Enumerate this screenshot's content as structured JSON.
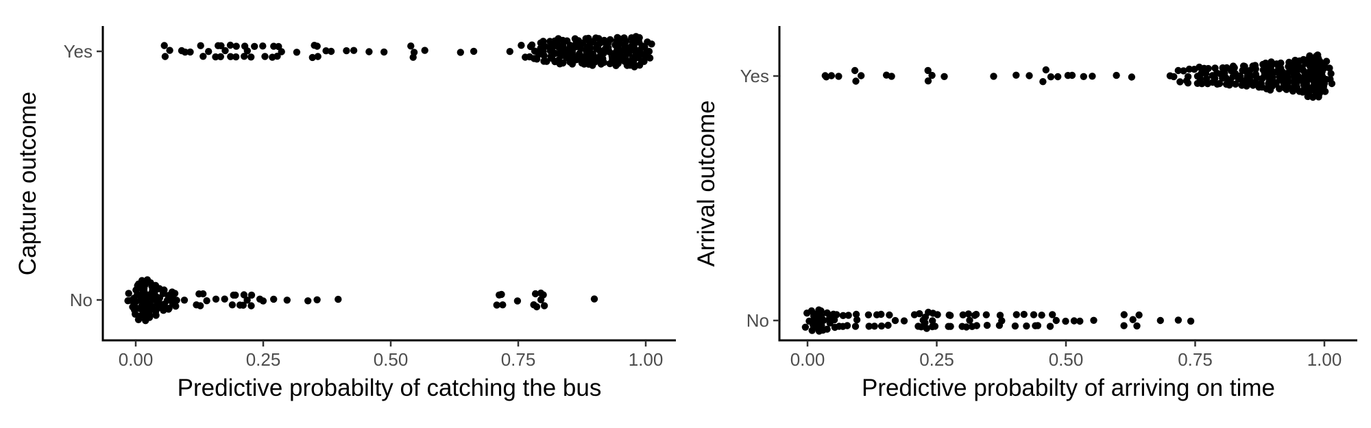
{
  "chart_data": [
    {
      "type": "scatter",
      "title": "",
      "xlabel": "Predictive probabilty of catching the bus",
      "ylabel": "Capture outcome",
      "xlim": [
        -0.065,
        1.065
      ],
      "x_ticks": [
        "0.00",
        "0.25",
        "0.50",
        "0.75",
        "1.00"
      ],
      "x_tick_values": [
        0,
        0.25,
        0.5,
        0.75,
        1.0
      ],
      "categories": [
        "No",
        "Yes"
      ],
      "grid": false,
      "legend": "none",
      "point_color": "#000000",
      "series": [
        {
          "category": "Yes",
          "x": [
            0.06,
            0.07,
            0.09,
            0.1,
            0.11,
            0.13,
            0.14,
            0.16,
            0.17,
            0.18,
            0.19,
            0.2,
            0.21,
            0.22,
            0.23,
            0.25,
            0.27,
            0.28,
            0.29,
            0.32,
            0.35,
            0.36,
            0.37,
            0.38,
            0.41,
            0.43,
            0.46,
            0.49,
            0.54,
            0.55,
            0.57,
            0.64,
            0.66,
            0.73,
            0.76,
            0.77,
            0.78,
            0.79,
            0.8,
            0.81,
            0.82,
            0.83,
            0.84,
            0.85,
            0.86,
            0.87,
            0.88,
            0.89,
            0.9,
            0.91,
            0.92,
            0.93,
            0.94,
            0.95,
            0.96,
            0.97,
            0.98,
            0.99,
            1.0,
            1.01
          ],
          "count": [
            2,
            1,
            1,
            1,
            1,
            2,
            1,
            2,
            2,
            1,
            2,
            2,
            2,
            1,
            2,
            2,
            2,
            2,
            1,
            1,
            2,
            2,
            1,
            1,
            1,
            1,
            1,
            1,
            2,
            1,
            1,
            1,
            1,
            1,
            2,
            2,
            3,
            4,
            5,
            5,
            6,
            7,
            6,
            6,
            7,
            6,
            7,
            7,
            8,
            7,
            6,
            7,
            8,
            7,
            8,
            8,
            9,
            8,
            5,
            3
          ]
        },
        {
          "category": "No",
          "x": [
            -0.02,
            -0.01,
            0.0,
            0.01,
            0.02,
            0.03,
            0.04,
            0.05,
            0.06,
            0.07,
            0.08,
            0.1,
            0.12,
            0.13,
            0.14,
            0.16,
            0.17,
            0.19,
            0.2,
            0.21,
            0.22,
            0.23,
            0.24,
            0.25,
            0.27,
            0.3,
            0.34,
            0.36,
            0.4,
            0.71,
            0.72,
            0.75,
            0.78,
            0.79,
            0.8,
            0.9
          ],
          "count": [
            1,
            3,
            8,
            12,
            14,
            11,
            9,
            6,
            5,
            4,
            3,
            1,
            2,
            2,
            1,
            1,
            1,
            2,
            2,
            2,
            1,
            2,
            1,
            1,
            1,
            1,
            1,
            1,
            1,
            2,
            2,
            1,
            2,
            3,
            2,
            1
          ]
        }
      ]
    },
    {
      "type": "scatter",
      "title": "",
      "xlabel": "Predictive probabilty of arriving on time",
      "ylabel": "Arrival outcome",
      "xlim": [
        -0.055,
        1.055
      ],
      "x_ticks": [
        "0.00",
        "0.25",
        "0.50",
        "0.75",
        "1.00"
      ],
      "x_tick_values": [
        0,
        0.25,
        0.5,
        0.75,
        1.0
      ],
      "categories": [
        "No",
        "Yes"
      ],
      "grid": false,
      "legend": "none",
      "point_color": "#000000",
      "series": [
        {
          "category": "Yes",
          "x": [
            0.03,
            0.04,
            0.05,
            0.06,
            0.09,
            0.1,
            0.15,
            0.16,
            0.23,
            0.24,
            0.26,
            0.36,
            0.4,
            0.43,
            0.46,
            0.47,
            0.48,
            0.5,
            0.51,
            0.53,
            0.55,
            0.6,
            0.63,
            0.7,
            0.71,
            0.72,
            0.73,
            0.74,
            0.75,
            0.76,
            0.77,
            0.78,
            0.79,
            0.8,
            0.81,
            0.82,
            0.83,
            0.84,
            0.85,
            0.86,
            0.87,
            0.88,
            0.89,
            0.9,
            0.91,
            0.92,
            0.93,
            0.94,
            0.95,
            0.96,
            0.97,
            0.98,
            0.99,
            1.0,
            1.01
          ],
          "count": [
            1,
            1,
            1,
            1,
            2,
            1,
            1,
            1,
            2,
            1,
            1,
            1,
            1,
            1,
            2,
            1,
            1,
            1,
            1,
            1,
            1,
            1,
            1,
            1,
            1,
            2,
            2,
            3,
            3,
            4,
            4,
            3,
            4,
            4,
            4,
            5,
            4,
            5,
            5,
            5,
            6,
            6,
            7,
            8,
            7,
            7,
            8,
            9,
            9,
            10,
            13,
            16,
            14,
            9,
            4
          ]
        },
        {
          "category": "No",
          "x": [
            0.0,
            0.01,
            0.02,
            0.03,
            0.04,
            0.05,
            0.06,
            0.07,
            0.08,
            0.09,
            0.1,
            0.12,
            0.13,
            0.14,
            0.16,
            0.17,
            0.19,
            0.21,
            0.22,
            0.23,
            0.24,
            0.25,
            0.27,
            0.28,
            0.3,
            0.31,
            0.32,
            0.33,
            0.35,
            0.37,
            0.38,
            0.4,
            0.42,
            0.44,
            0.45,
            0.47,
            0.48,
            0.5,
            0.52,
            0.53,
            0.55,
            0.61,
            0.63,
            0.64,
            0.68,
            0.72,
            0.74
          ],
          "count": [
            3,
            5,
            6,
            5,
            4,
            3,
            2,
            2,
            2,
            2,
            1,
            2,
            2,
            2,
            2,
            1,
            1,
            2,
            3,
            4,
            3,
            2,
            2,
            2,
            2,
            3,
            2,
            2,
            2,
            2,
            1,
            2,
            2,
            2,
            2,
            2,
            1,
            1,
            1,
            1,
            1,
            2,
            1,
            2,
            1,
            1,
            1
          ]
        }
      ]
    }
  ]
}
